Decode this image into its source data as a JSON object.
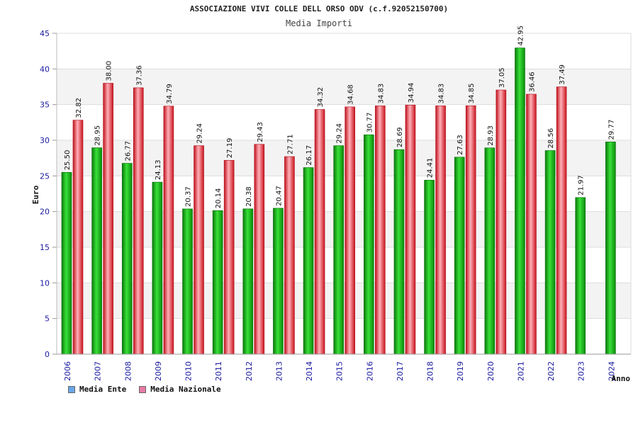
{
  "chart_data": {
    "type": "bar",
    "title": "ASSOCIAZIONE VIVI COLLE DELL ORSO ODV (c.f.92052150700)",
    "subtitle": "Media Importi",
    "xlabel": "Anno",
    "ylabel": "Euro",
    "ylim": [
      0,
      45
    ],
    "yticks": [
      "0",
      "5",
      "10",
      "15",
      "20",
      "25",
      "30",
      "35",
      "40",
      "45"
    ],
    "grid": true,
    "legend_position": "bottom-left",
    "categories": [
      "2006",
      "2007",
      "2008",
      "2009",
      "2010",
      "2011",
      "2012",
      "2013",
      "2014",
      "2015",
      "2016",
      "2017",
      "2018",
      "2019",
      "2020",
      "2021",
      "2022",
      "2023",
      "2024"
    ],
    "series": [
      {
        "name": "Media Ente",
        "color": "#1fbf1f",
        "legend_color": "#6aa6e8",
        "values": [
          25.5,
          28.95,
          26.77,
          24.13,
          20.37,
          20.14,
          20.38,
          20.47,
          26.17,
          29.24,
          30.77,
          28.69,
          24.41,
          27.63,
          28.93,
          42.95,
          28.56,
          21.97,
          29.77
        ],
        "labels": [
          "25.50",
          "28.95",
          "26.77",
          "24.13",
          "20.37",
          "20.14",
          "20.38",
          "20.47",
          "26.17",
          "29.24",
          "30.77",
          "28.69",
          "24.41",
          "27.63",
          "28.93",
          "42.95",
          "28.56",
          "21.97",
          "29.77"
        ]
      },
      {
        "name": "Media Nazionale",
        "color": "#e8323c",
        "legend_color": "#e87aa6",
        "values": [
          32.82,
          38.0,
          37.36,
          34.79,
          29.24,
          27.19,
          29.43,
          27.71,
          34.32,
          34.68,
          34.83,
          34.94,
          34.83,
          34.85,
          37.05,
          36.46,
          37.49,
          null,
          null
        ],
        "labels": [
          "32.82",
          "38.00",
          "37.36",
          "34.79",
          "29.24",
          "27.19",
          "29.43",
          "27.71",
          "34.32",
          "34.68",
          "34.83",
          "34.94",
          "34.83",
          "34.85",
          "37.05",
          "36.46",
          "37.49",
          "",
          ""
        ]
      }
    ]
  }
}
